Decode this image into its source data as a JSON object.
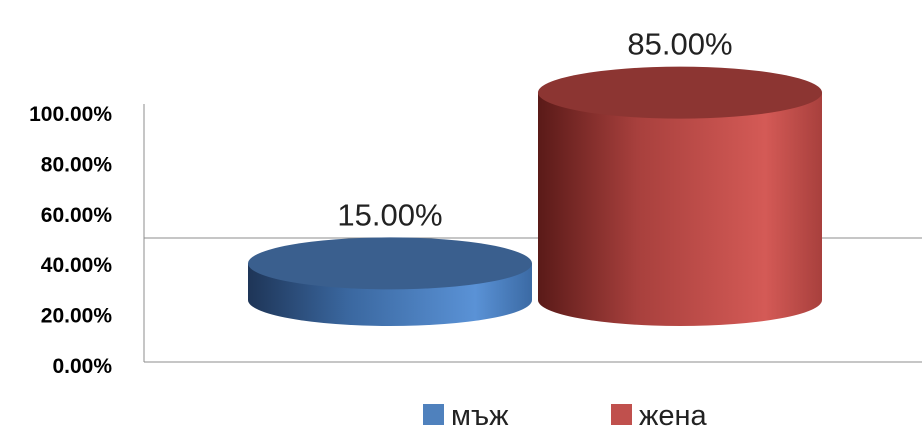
{
  "chart_data": {
    "type": "bar",
    "style": "3d-cylinder",
    "categories": [
      "мъж",
      "жена"
    ],
    "values": [
      15.0,
      85.0
    ],
    "data_labels": [
      "15.00%",
      "85.00%"
    ],
    "colors": [
      "#4f81bd",
      "#c0504d"
    ],
    "y_ticks": [
      {
        "value": 0,
        "label": "0.00%"
      },
      {
        "value": 20,
        "label": "20.00%"
      },
      {
        "value": 40,
        "label": "40.00%"
      },
      {
        "value": 60,
        "label": "60.00%"
      },
      {
        "value": 80,
        "label": "80.00%"
      },
      {
        "value": 100,
        "label": "100.00%"
      }
    ],
    "ylim": [
      0,
      100
    ],
    "legend": {
      "position": "bottom",
      "entries": [
        {
          "label": "мъж",
          "color": "#4f81bd"
        },
        {
          "label": "жена",
          "color": "#c0504d"
        }
      ]
    },
    "grid": false
  }
}
